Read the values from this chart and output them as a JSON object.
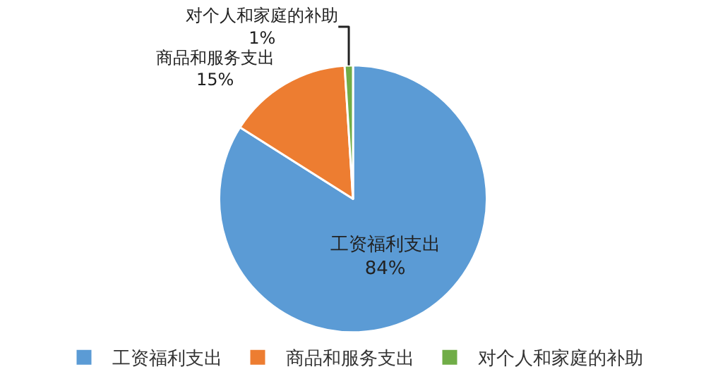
{
  "chart_data": {
    "type": "pie",
    "categories": [
      "工资福利支出",
      "商品和服务支出",
      "对个人和家庭的补助"
    ],
    "values": [
      84,
      15,
      1
    ],
    "value_labels": [
      "84%",
      "15%",
      "1%"
    ],
    "colors": [
      "#5b9bd5",
      "#ed7d31",
      "#70ad47"
    ],
    "legend": "bottom"
  }
}
